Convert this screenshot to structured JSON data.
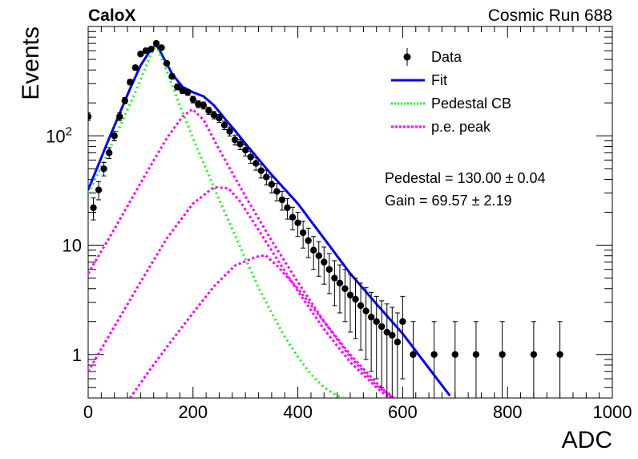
{
  "header": {
    "left": "CaloX",
    "right": "Cosmic Run 688"
  },
  "chart_data": {
    "type": "scatter",
    "xlabel": "ADC",
    "ylabel": "Events",
    "xlim": [
      0,
      1000
    ],
    "ylim": [
      0.4,
      1000
    ],
    "y_scale": "log",
    "x_ticks": [
      "0",
      "200",
      "400",
      "600",
      "800",
      "1000"
    ],
    "y_ticks": [
      {
        "value": 1,
        "base": "1",
        "exp": ""
      },
      {
        "value": 10,
        "base": "10",
        "exp": ""
      },
      {
        "value": 100,
        "base": "10",
        "exp": "2"
      }
    ],
    "grid": false,
    "legend_position": "top-right",
    "legend": [
      {
        "label": "Data",
        "style": "marker",
        "color": "#000000"
      },
      {
        "label": "Fit",
        "style": "line",
        "color": "#0000ff"
      },
      {
        "label": "Pedestal CB",
        "style": "dotted",
        "color": "#00ff00"
      },
      {
        "label": "p.e. peak",
        "style": "dashed",
        "color": "#ff00ff"
      }
    ],
    "annotations": [
      {
        "name": "pedestal",
        "label": "Pedestal",
        "value": "130.00",
        "error": "0.04"
      },
      {
        "name": "gain",
        "label": "Gain",
        "value": "69.57",
        "error": "2.19"
      }
    ],
    "series": [
      {
        "name": "Data",
        "kind": "points",
        "color": "#000000",
        "x": [
          0,
          10,
          20,
          30,
          40,
          50,
          60,
          70,
          80,
          90,
          100,
          110,
          120,
          130,
          140,
          150,
          160,
          170,
          180,
          190,
          200,
          210,
          220,
          230,
          240,
          250,
          260,
          270,
          280,
          290,
          300,
          310,
          320,
          330,
          340,
          350,
          360,
          370,
          380,
          390,
          400,
          410,
          420,
          430,
          440,
          450,
          460,
          470,
          480,
          490,
          500,
          510,
          520,
          530,
          540,
          550,
          560,
          570,
          580,
          590,
          600,
          620,
          660,
          700,
          740,
          790,
          850,
          900
        ],
        "y": [
          150,
          22,
          32,
          50,
          70,
          100,
          150,
          210,
          310,
          420,
          560,
          600,
          620,
          700,
          640,
          460,
          350,
          280,
          260,
          250,
          215,
          195,
          190,
          170,
          155,
          145,
          125,
          110,
          92,
          84,
          74,
          64,
          56,
          48,
          42,
          36,
          31,
          26,
          22,
          18,
          16,
          13,
          11,
          9,
          8,
          7,
          6,
          5,
          4.5,
          4,
          3.5,
          3.2,
          2.8,
          2.5,
          2.2,
          2,
          1.8,
          1.6,
          1.5,
          1.3,
          2,
          1,
          1,
          1,
          1,
          1,
          1,
          1
        ],
        "err": [
          12,
          5,
          6,
          7,
          8,
          10,
          12,
          14,
          18,
          20,
          24,
          24,
          25,
          26,
          25,
          21,
          19,
          17,
          16,
          16,
          15,
          14,
          14,
          13,
          12,
          12,
          11,
          10.5,
          9.6,
          9.2,
          8.6,
          8,
          7.5,
          6.9,
          6.5,
          6,
          5.6,
          5.1,
          4.7,
          4.2,
          4,
          3.6,
          3.3,
          3,
          2.8,
          2.6,
          2.4,
          2.2,
          2.1,
          2,
          1.9,
          1.8,
          1.7,
          1.6,
          1.5,
          1.4,
          1.3,
          1.3,
          1.2,
          1.1,
          1.4,
          1,
          1,
          1,
          1,
          1,
          1,
          1
        ]
      },
      {
        "name": "Fit",
        "kind": "line",
        "color": "#0000ff",
        "x": [
          0,
          20,
          40,
          60,
          80,
          100,
          120,
          130,
          140,
          160,
          180,
          200,
          220,
          240,
          260,
          280,
          300,
          350,
          400,
          450,
          500,
          550,
          600,
          650,
          690
        ],
        "y": [
          32,
          55,
          95,
          160,
          270,
          440,
          620,
          680,
          560,
          370,
          280,
          250,
          230,
          190,
          145,
          112,
          85,
          44,
          24,
          11.5,
          5.5,
          2.9,
          1.55,
          0.75,
          0.42
        ]
      },
      {
        "name": "Pedestal CB",
        "kind": "dotted",
        "color": "#00ff00",
        "x": [
          0,
          30,
          60,
          90,
          120,
          130,
          150,
          175,
          200,
          225,
          250,
          275,
          300,
          325,
          350,
          375,
          400,
          425,
          450,
          475,
          490
        ],
        "y": [
          30,
          58,
          120,
          250,
          560,
          680,
          390,
          190,
          95,
          50,
          26,
          14,
          7.5,
          4.1,
          2.4,
          1.45,
          0.95,
          0.66,
          0.5,
          0.42,
          0.4
        ]
      },
      {
        "name": "p.e. peak",
        "kind": "dashed",
        "color": "#ff00ff",
        "curves": [
          {
            "x": [
              0,
              50,
              100,
              150,
              180,
              199,
              220,
              250,
              300,
              350,
              400,
              450,
              500,
              550,
              590
            ],
            "y": [
              5.5,
              14,
              37,
              95,
              150,
              175,
              140,
              75,
              28,
              11,
              4.6,
              2,
              0.95,
              0.52,
              0.38
            ]
          },
          {
            "x": [
              0,
              50,
              100,
              150,
              200,
              240,
              268,
              290,
              320,
              360,
              400,
              450,
              500,
              550,
              580
            ],
            "y": [
              0.7,
              1.8,
              4.6,
              11.5,
              24,
              34,
              33,
              25,
              15,
              7.5,
              3.8,
              1.7,
              0.85,
              0.5,
              0.38
            ]
          },
          {
            "x": [
              80,
              120,
              160,
              200,
              240,
              280,
              320,
              338,
              360,
              400,
              450,
              500,
              550,
              580
            ],
            "y": [
              0.4,
              0.75,
              1.35,
              2.4,
              4.2,
              6.5,
              7.8,
              8.1,
              6.5,
              4,
              2,
              1,
              0.55,
              0.4
            ]
          }
        ]
      }
    ]
  }
}
